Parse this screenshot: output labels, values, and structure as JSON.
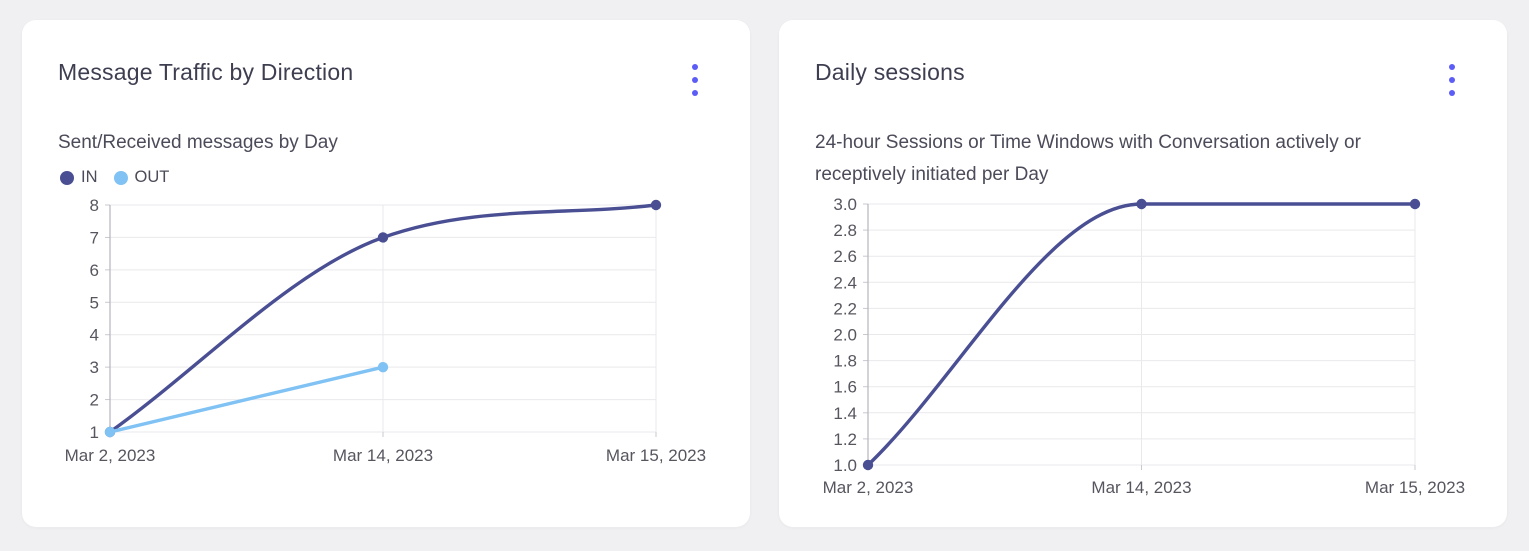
{
  "page": {
    "background": "#f0f0f2"
  },
  "theme": {
    "card_background": "#ffffff",
    "title_color": "#3e3e51",
    "subtitle_color": "#4b4b59",
    "axis_label_color": "#56565f",
    "grid_color": "#e9e9ec",
    "axis_color": "#b5b5bd",
    "tick_color": "#c9c9d0",
    "menu_color": "#5c5cf6"
  },
  "cards": [
    {
      "title": "Message Traffic by Direction",
      "subtitle": "Sent/Received messages by Day",
      "menu": {
        "icon": "kebab-menu-icon",
        "color": "#5c5cf6"
      },
      "legend": [
        {
          "label": "IN",
          "color": "#4a4f93"
        },
        {
          "label": "OUT",
          "color": "#7fc2f3"
        }
      ],
      "chart_data": {
        "type": "line",
        "title": "Message Traffic by Direction",
        "subtitle": "Sent/Received messages by Day",
        "categories": [
          "Mar 2, 2023",
          "Mar 14, 2023",
          "Mar 15, 2023"
        ],
        "series": [
          {
            "name": "IN",
            "color": "#4a4f93",
            "values": [
              1,
              7,
              8
            ]
          },
          {
            "name": "OUT",
            "color": "#7fc2f3",
            "values": [
              1,
              3,
              null
            ]
          }
        ],
        "ylim": [
          1,
          8
        ],
        "yticks": [
          1,
          2,
          3,
          4,
          5,
          6,
          7,
          8
        ],
        "ytick_labels": [
          "1",
          "2",
          "3",
          "4",
          "5",
          "6",
          "7",
          "8"
        ],
        "xlabel": "",
        "ylabel": "",
        "grid": true,
        "legend_position": "top-left",
        "curve": "smooth"
      }
    },
    {
      "title": "Daily sessions",
      "subtitle": "24-hour Sessions or Time Windows with Conversation actively or receptively initiated per Day",
      "menu": {
        "icon": "kebab-menu-icon",
        "color": "#5c5cf6"
      },
      "legend": [],
      "chart_data": {
        "type": "line",
        "title": "Daily sessions",
        "subtitle": "24-hour Sessions or Time Windows with Conversation actively or receptively initiated per Day",
        "categories": [
          "Mar 2, 2023",
          "Mar 14, 2023",
          "Mar 15, 2023"
        ],
        "series": [
          {
            "name": "Daily sessions",
            "color": "#4a4f93",
            "values": [
              1,
              3,
              3
            ]
          }
        ],
        "ylim": [
          1,
          3
        ],
        "yticks": [
          1.0,
          1.2,
          1.4,
          1.6,
          1.8,
          2.0,
          2.2,
          2.4,
          2.6,
          2.8,
          3.0
        ],
        "ytick_labels": [
          "1.0",
          "1.2",
          "1.4",
          "1.6",
          "1.8",
          "2.0",
          "2.2",
          "2.4",
          "2.6",
          "2.8",
          "3.0"
        ],
        "xlabel": "",
        "ylabel": "",
        "grid": true,
        "legend_position": "none",
        "curve": "smooth"
      }
    }
  ]
}
